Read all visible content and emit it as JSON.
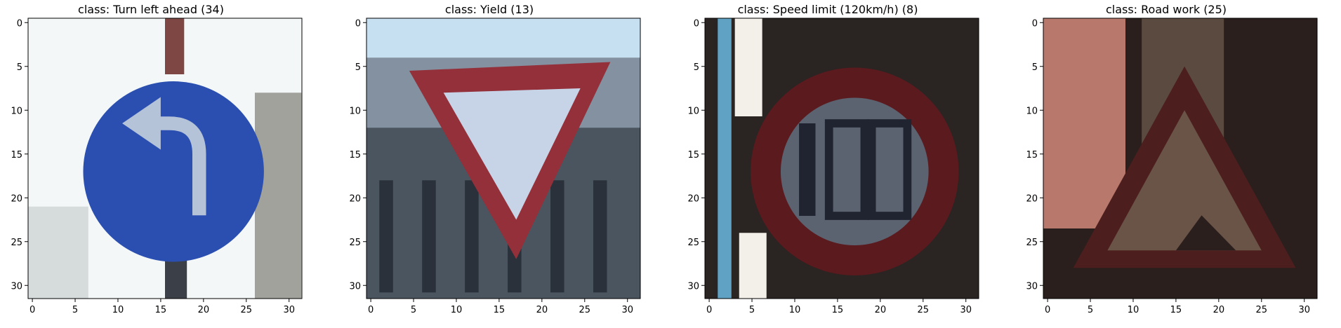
{
  "figure": {
    "panels": [
      {
        "title": "class: Turn left ahead (34)",
        "scene": "turn-left",
        "colors": {
          "background": "#f3f7f8",
          "sign": "#2a4fb0",
          "arrow": "#b5c3d9",
          "post": "#7e4743",
          "ground": "#8d8c84"
        }
      },
      {
        "title": "class: Yield (13)",
        "scene": "yield",
        "colors": {
          "sky": "#c6e0f2",
          "building": "#4a5560",
          "building_light": "#8391a0",
          "border": "#94303a",
          "inner": "#c7d4e7"
        }
      },
      {
        "title": "class: Speed limit (120km/h) (8)",
        "scene": "speed-120",
        "colors": {
          "background": "#2a2422",
          "ring": "#5b1a1e",
          "inner": "#5b6270",
          "digits": "#1f2430",
          "light": "#f2f0e8",
          "blue_strip": "#5fa2c4"
        }
      },
      {
        "title": "class: Road work (25)",
        "scene": "road-work",
        "colors": {
          "wall": "#b8786c",
          "dark": "#2a1f1c",
          "triangle": "#4d1e1e",
          "inner": "#6a5448"
        }
      }
    ],
    "axes": {
      "x_ticks": [
        0,
        5,
        10,
        15,
        20,
        25,
        30
      ],
      "y_ticks": [
        0,
        5,
        10,
        15,
        20,
        25,
        30
      ],
      "xlim": [
        -0.5,
        31.5
      ],
      "ylim": [
        31.5,
        -0.5
      ]
    }
  }
}
